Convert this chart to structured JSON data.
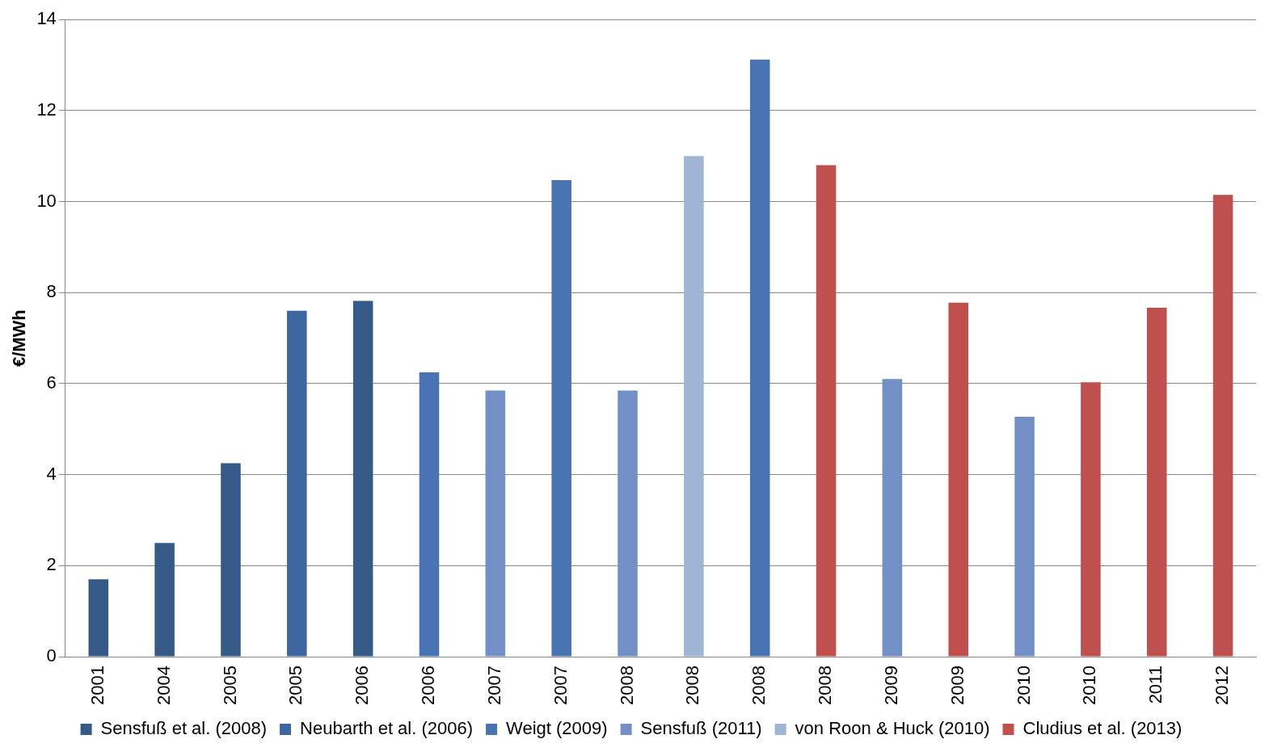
{
  "chart_data": {
    "type": "bar",
    "ylabel": "€/MWh",
    "categories": [
      "2001",
      "2004",
      "2005",
      "2005",
      "2006",
      "2006",
      "2007",
      "2007",
      "2008",
      "2008",
      "2008",
      "2008",
      "2009",
      "2009",
      "2010",
      "2010",
      "2011",
      "2012"
    ],
    "series": [
      {
        "name": "Sensfuß et al. (2008)",
        "color": "#355a88",
        "values": [
          1.7,
          2.5,
          4.25,
          null,
          7.82,
          null,
          null,
          null,
          null,
          null,
          null,
          null,
          null,
          null,
          null,
          null,
          null,
          null
        ]
      },
      {
        "name": "Neubarth et al. (2006)",
        "color": "#3e67a1",
        "values": [
          null,
          null,
          null,
          7.6,
          null,
          null,
          null,
          null,
          null,
          null,
          null,
          null,
          null,
          null,
          null,
          null,
          null,
          null
        ]
      },
      {
        "name": "Weigt (2009)",
        "color": "#4874b4",
        "values": [
          null,
          null,
          null,
          null,
          null,
          6.25,
          null,
          10.47,
          null,
          null,
          13.12,
          null,
          null,
          null,
          null,
          null,
          null,
          null
        ]
      },
      {
        "name": "Sensfuß (2011)",
        "color": "#7290c6",
        "values": [
          null,
          null,
          null,
          null,
          null,
          null,
          5.85,
          null,
          5.85,
          null,
          null,
          null,
          6.1,
          null,
          5.27,
          null,
          null,
          null
        ]
      },
      {
        "name": "von Roon & Huck (2010)",
        "color": "#a0b4d4",
        "values": [
          null,
          null,
          null,
          null,
          null,
          null,
          null,
          null,
          null,
          11.0,
          null,
          null,
          null,
          null,
          null,
          null,
          null,
          null
        ]
      },
      {
        "name": "Cludius et al. (2013)",
        "color": "#c0504d",
        "values": [
          null,
          null,
          null,
          null,
          null,
          null,
          null,
          null,
          null,
          null,
          null,
          10.8,
          null,
          7.78,
          null,
          6.03,
          7.67,
          10.15
        ]
      }
    ],
    "ylim": [
      0,
      14
    ],
    "yticks": [
      0,
      2,
      4,
      6,
      8,
      10,
      12,
      14
    ],
    "grid": "y",
    "legend": "bottom"
  }
}
